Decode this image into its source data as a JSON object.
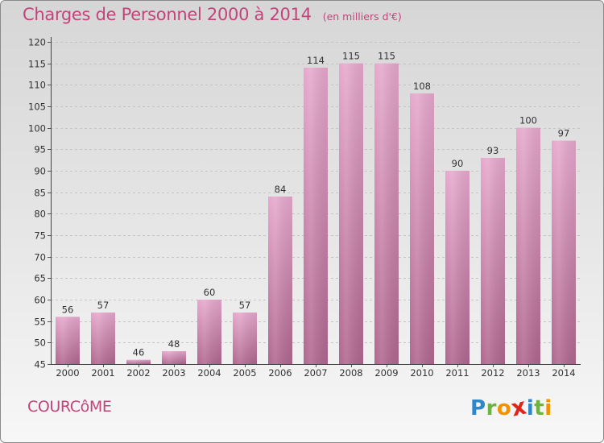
{
  "header": {
    "title": "Charges de Personnel 2000 à 2014",
    "subtitle": "(en milliers d'€)"
  },
  "footer": {
    "commune": "COURCôME",
    "logo_text": "Proxiti",
    "logo_letters": [
      {
        "ch": "P",
        "color": "#2f86c9"
      },
      {
        "ch": "r",
        "color": "#6db33f"
      },
      {
        "ch": "o",
        "color": "#f39200"
      },
      {
        "ch": "x",
        "color": "#e2231a"
      },
      {
        "ch": "i",
        "color": "#2f86c9"
      },
      {
        "ch": "t",
        "color": "#6db33f"
      },
      {
        "ch": "i",
        "color": "#f39200"
      }
    ]
  },
  "colors": {
    "accent": "#c2447a",
    "bar_top": "#e6a8cd",
    "bar_bottom": "#b0678f"
  },
  "chart_data": {
    "type": "bar",
    "categories": [
      "2000",
      "2001",
      "2002",
      "2003",
      "2004",
      "2005",
      "2006",
      "2007",
      "2008",
      "2009",
      "2010",
      "2011",
      "2012",
      "2013",
      "2014"
    ],
    "values": [
      56,
      57,
      46,
      48,
      60,
      57,
      84,
      114,
      115,
      115,
      108,
      90,
      93,
      100,
      97
    ],
    "ylim": [
      45,
      120
    ],
    "yticks": [
      45,
      50,
      55,
      60,
      65,
      70,
      75,
      80,
      85,
      90,
      95,
      100,
      105,
      110,
      115,
      120
    ],
    "grid": true
  }
}
